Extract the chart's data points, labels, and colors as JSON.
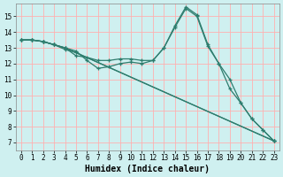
{
  "xlabel": "Humidex (Indice chaleur)",
  "bg_color": "#cff0f0",
  "grid_color": "#ffb0b0",
  "line_color": "#2e7d6e",
  "xlim": [
    -0.5,
    23.5
  ],
  "ylim": [
    6.5,
    15.8
  ],
  "xticks": [
    0,
    1,
    2,
    3,
    4,
    5,
    6,
    7,
    8,
    9,
    10,
    11,
    12,
    13,
    14,
    15,
    16,
    17,
    18,
    19,
    20,
    21,
    22,
    23
  ],
  "yticks": [
    7,
    8,
    9,
    10,
    11,
    12,
    13,
    14,
    15
  ],
  "line1_x": [
    0,
    1,
    2,
    3,
    4,
    5,
    6,
    7,
    8,
    9,
    10,
    11,
    12,
    13,
    14,
    15,
    16,
    17,
    18,
    19,
    20,
    21,
    22,
    23
  ],
  "line1_y": [
    13.5,
    13.5,
    13.4,
    13.2,
    13.0,
    12.8,
    12.2,
    11.7,
    11.8,
    12.0,
    12.1,
    12.0,
    12.2,
    13.0,
    14.4,
    15.6,
    15.1,
    13.2,
    12.0,
    10.4,
    9.5,
    8.5,
    7.8,
    7.1
  ],
  "line2_x": [
    0,
    1,
    2,
    3,
    4,
    5,
    6,
    7,
    8,
    9,
    10,
    11,
    12,
    13,
    14,
    15,
    16,
    17,
    18,
    19,
    20,
    21,
    22,
    23
  ],
  "line2_y": [
    13.5,
    13.5,
    13.4,
    13.2,
    13.0,
    12.5,
    12.4,
    12.2,
    12.2,
    12.3,
    12.3,
    12.2,
    12.2,
    13.0,
    14.3,
    15.5,
    15.0,
    13.1,
    12.0,
    11.0,
    9.5,
    8.5,
    7.8,
    7.1
  ],
  "line3_x": [
    0,
    1,
    2,
    3,
    4,
    23
  ],
  "line3_y": [
    13.5,
    13.5,
    13.4,
    13.2,
    13.0,
    7.1
  ],
  "line4_x": [
    0,
    1,
    2,
    3,
    4,
    5,
    23
  ],
  "line4_y": [
    13.5,
    13.5,
    13.4,
    13.2,
    12.9,
    12.7,
    7.1
  ],
  "xlabel_fontsize": 7,
  "tick_fontsize": 5.5
}
